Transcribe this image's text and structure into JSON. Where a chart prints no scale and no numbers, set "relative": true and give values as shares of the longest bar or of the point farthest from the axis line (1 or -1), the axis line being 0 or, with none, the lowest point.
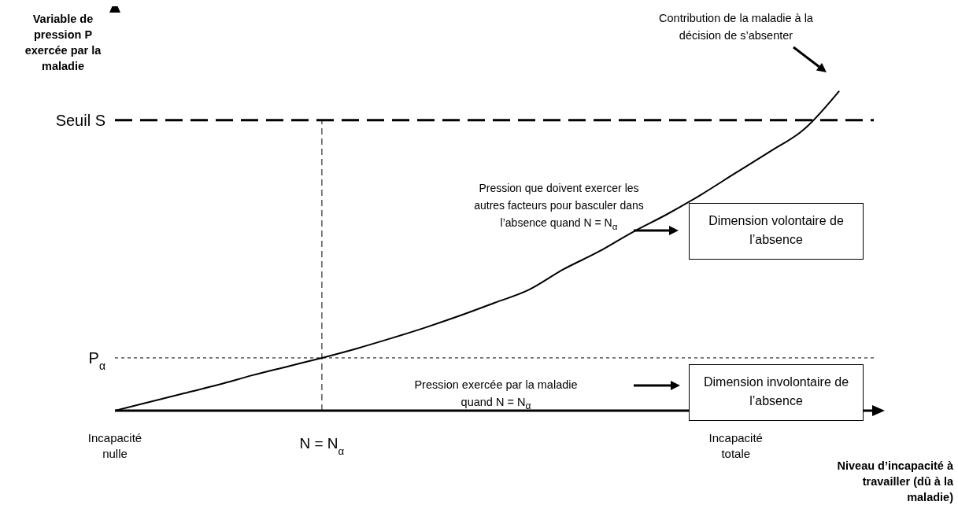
{
  "chart_data": {
    "type": "line",
    "relative": true,
    "ylabel": "Variable de pression P exercée par la maladie",
    "xlabel": "Niveau d’incapacité à travailler (dû à la maladie)",
    "categories": [
      "Incapacité nulle",
      null,
      null,
      null,
      null,
      null,
      "N = N$_{α}$",
      null,
      null,
      null,
      null,
      null,
      null,
      null,
      null,
      null,
      null,
      null,
      "Incapacité totale",
      null,
      null,
      null,
      null
    ],
    "series": [
      {
        "color": "#000000",
        "values": [
          0,
          0.027,
          0.054,
          0.081,
          0.111,
          0.138,
          0.165,
          0.194,
          0.226,
          0.26,
          0.297,
          0.337,
          0.378,
          0.442,
          0.496,
          0.558,
          0.614,
          0.676,
          0.744,
          0.811,
          0.882,
          1,
          null
        ]
      }
    ],
    "ref_lines": [
      {
        "axis": "y",
        "value": 0.909,
        "label": "Seuil S",
        "line_style": "dashed",
        "color": "#000000"
      },
      {
        "axis": "y",
        "value": 0.165,
        "label": "P$_{α}$",
        "line_style": "dotted",
        "color": "#000000"
      },
      {
        "axis": "x",
        "value": "N = N$_{α}$",
        "line_style": "dashed",
        "color": "#000000"
      }
    ],
    "annotations": [
      "Contribution de la maladie à la décision de s’absenter",
      "Pression que doivent exercer les autres facteurs pour basculer dans l’absence quand N = N$_{α}$",
      "Pression exercée par la maladie quand N = N$_{α}$",
      "Dimension volontaire de l’absence",
      "Dimension involontaire de l’absence"
    ],
    "line_style": "solid",
    "marker": "none",
    "grid": false,
    "legend": false
  }
}
